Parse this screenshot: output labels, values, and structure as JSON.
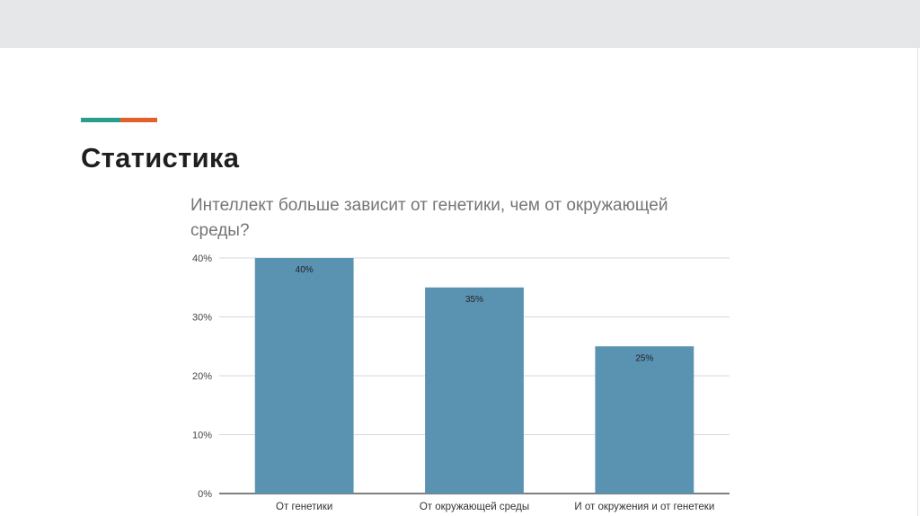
{
  "slide": {
    "title": "Статистика",
    "accent_colors": [
      "#2a9d8f",
      "#e3602b"
    ]
  },
  "chart_data": {
    "type": "bar",
    "title_lines": [
      "Интеллект больше зависит от генетики, чем от окружающей",
      "среды?"
    ],
    "categories": [
      "От генетики",
      "От окружающей среды",
      "И от окружения и от генетеки"
    ],
    "values": [
      40,
      35,
      25
    ],
    "data_labels": [
      "40%",
      "35%",
      "25%"
    ],
    "y_ticks": [
      0,
      10,
      20,
      30,
      40
    ],
    "y_tick_labels": [
      "0%",
      "10%",
      "20%",
      "30%",
      "40%"
    ],
    "ylim": [
      0,
      40
    ],
    "grid": true,
    "legend": "none",
    "bar_color": "#5a92b2",
    "grid_color": "#d9d9d9"
  }
}
